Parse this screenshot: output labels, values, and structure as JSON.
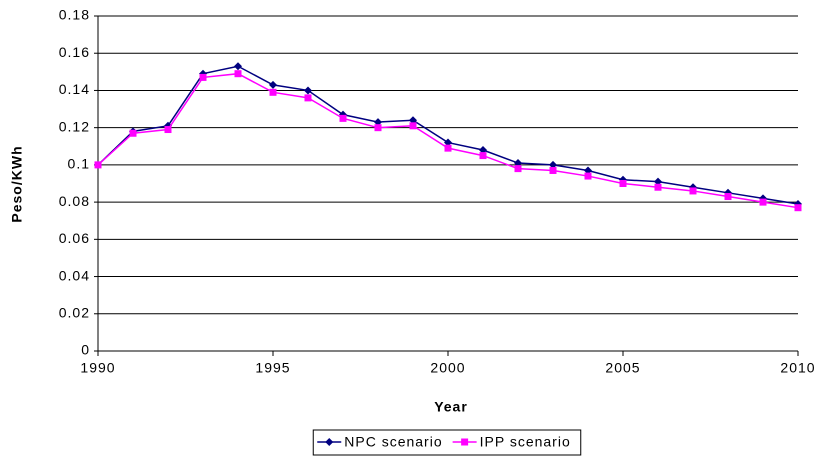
{
  "chart_data": {
    "type": "line",
    "x_label": "Year",
    "y_label": "Peso/KWh",
    "x": [
      1990,
      1991,
      1992,
      1993,
      1994,
      1995,
      1996,
      1997,
      1998,
      1999,
      2000,
      2001,
      2002,
      2003,
      2004,
      2005,
      2006,
      2007,
      2008,
      2009,
      2010
    ],
    "series": [
      {
        "name": "NPC scenario",
        "color": "#000080",
        "marker": "diamond",
        "values": [
          0.1,
          0.118,
          0.121,
          0.149,
          0.153,
          0.143,
          0.14,
          0.127,
          0.123,
          0.124,
          0.112,
          0.108,
          0.101,
          0.1,
          0.097,
          0.092,
          0.091,
          0.088,
          0.085,
          0.082,
          0.079
        ]
      },
      {
        "name": "IPP scenario",
        "color": "#ff00ff",
        "marker": "square",
        "values": [
          0.1,
          0.117,
          0.119,
          0.147,
          0.149,
          0.139,
          0.136,
          0.125,
          0.12,
          0.121,
          0.109,
          0.105,
          0.098,
          0.097,
          0.094,
          0.09,
          0.088,
          0.086,
          0.083,
          0.08,
          0.077
        ]
      }
    ],
    "xlim": [
      1990,
      2010
    ],
    "xticks": [
      1990,
      1995,
      2000,
      2005,
      2010
    ],
    "ylim": [
      0,
      0.18
    ],
    "yticks": [
      0,
      0.02,
      0.04,
      0.06,
      0.08,
      0.1,
      0.12,
      0.14,
      0.16,
      0.18
    ],
    "grid": true,
    "legend": "bottom"
  }
}
